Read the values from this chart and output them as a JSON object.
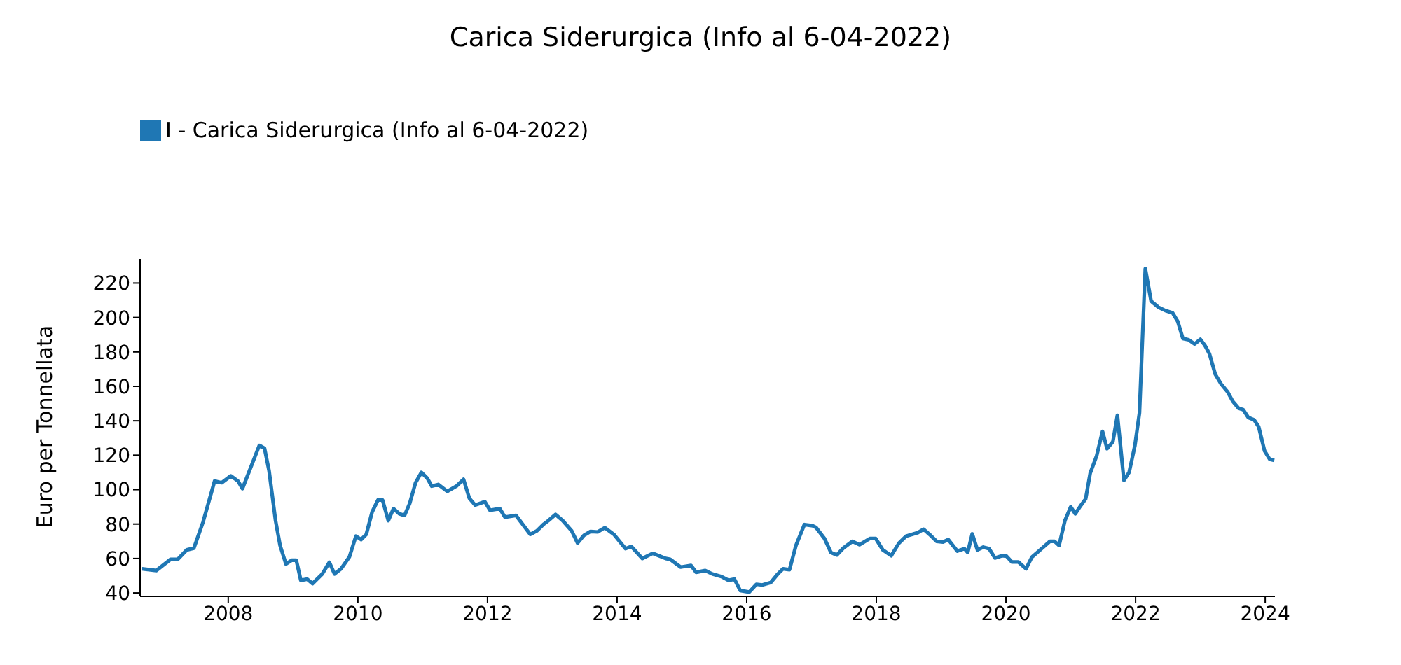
{
  "chart_data": {
    "type": "line",
    "title": "Carica Siderurgica (Info al 6-04-2022)",
    "ylabel": "Euro per Tonnellata",
    "x": [
      2006.67,
      2006.89,
      2007.11,
      2007.22,
      2007.36,
      2007.47,
      2007.61,
      2007.79,
      2007.9,
      2008.04,
      2008.15,
      2008.22,
      2008.48,
      2008.56,
      2008.63,
      2008.73,
      2008.8,
      2008.89,
      2008.98,
      2009.05,
      2009.12,
      2009.22,
      2009.3,
      2009.45,
      2009.56,
      2009.64,
      2009.74,
      2009.87,
      2009.97,
      2010.05,
      2010.13,
      2010.22,
      2010.31,
      2010.38,
      2010.47,
      2010.55,
      2010.64,
      2010.72,
      2010.8,
      2010.89,
      2010.98,
      2011.07,
      2011.14,
      2011.24,
      2011.38,
      2011.52,
      2011.63,
      2011.72,
      2011.81,
      2011.96,
      2012.04,
      2012.19,
      2012.27,
      2012.44,
      2012.66,
      2012.76,
      2012.87,
      2012.94,
      2013.05,
      2013.16,
      2013.3,
      2013.39,
      2013.49,
      2013.59,
      2013.7,
      2013.81,
      2013.95,
      2014.13,
      2014.22,
      2014.39,
      2014.55,
      2014.75,
      2014.82,
      2014.98,
      2015.14,
      2015.22,
      2015.36,
      2015.47,
      2015.61,
      2015.72,
      2015.81,
      2015.9,
      2016.04,
      2016.15,
      2016.24,
      2016.37,
      2016.48,
      2016.56,
      2016.66,
      2016.76,
      2016.89,
      2017.02,
      2017.07,
      2017.2,
      2017.3,
      2017.39,
      2017.49,
      2017.63,
      2017.74,
      2017.9,
      2017.99,
      2018.1,
      2018.23,
      2018.35,
      2018.46,
      2018.64,
      2018.73,
      2018.82,
      2018.93,
      2019.03,
      2019.11,
      2019.25,
      2019.36,
      2019.41,
      2019.48,
      2019.56,
      2019.65,
      2019.74,
      2019.83,
      2019.94,
      2020.01,
      2020.09,
      2020.19,
      2020.31,
      2020.4,
      2020.55,
      2020.68,
      2020.75,
      2020.82,
      2020.91,
      2021.0,
      2021.07,
      2021.15,
      2021.23,
      2021.3,
      2021.4,
      2021.49,
      2021.56,
      2021.65,
      2021.72,
      2021.82,
      2021.9,
      2021.99,
      2022.06,
      2022.15,
      2022.24,
      2022.35,
      2022.46,
      2022.57,
      2022.65,
      2022.73,
      2022.82,
      2022.91,
      2023.0,
      2023.07,
      2023.14,
      2023.23,
      2023.32,
      2023.42,
      2023.5,
      2023.59,
      2023.66,
      2023.74,
      2023.83,
      2023.9,
      2023.99,
      2024.07,
      2024.14
    ],
    "series": [
      {
        "name": "I - Carica Siderurgica (Info al 6-04-2022)",
        "color": "#1f77b4",
        "values": [
          54,
          53,
          59.5,
          59.5,
          65,
          66,
          81,
          105,
          104,
          108,
          105,
          100.6,
          125.7,
          124,
          111,
          82,
          67.6,
          56.8,
          59,
          59,
          47.3,
          48,
          45.4,
          51,
          57.8,
          51,
          54,
          61,
          73,
          71,
          74,
          87,
          94,
          94,
          82,
          89,
          86,
          85,
          92,
          104,
          110,
          106.7,
          102,
          103,
          99,
          102,
          106,
          95,
          91,
          93,
          88,
          89,
          84,
          85,
          74,
          76,
          80,
          82,
          85.6,
          82,
          76,
          69,
          73.5,
          75.7,
          75.4,
          77.9,
          74,
          65.7,
          67,
          60,
          63,
          60,
          59.5,
          55,
          56,
          52,
          53,
          51,
          49.5,
          47.3,
          48,
          41.4,
          40.5,
          45,
          44.6,
          46,
          51,
          54,
          53.5,
          67.6,
          79.7,
          79,
          78,
          71.6,
          63.5,
          62,
          66,
          70,
          68,
          71.6,
          71.6,
          65,
          61.6,
          69,
          73,
          75,
          77,
          74,
          70,
          69.6,
          71,
          64.3,
          65.7,
          63.5,
          74.3,
          65,
          66.6,
          65.7,
          60.3,
          61.6,
          61.3,
          58,
          58,
          54,
          60.8,
          65.7,
          70,
          70,
          67.6,
          82,
          90,
          86,
          90.5,
          94.6,
          109.5,
          119.7,
          133.8,
          123.8,
          127.8,
          143.2,
          105.4,
          110,
          125.7,
          144.6,
          228.4,
          209.5,
          206,
          204,
          202.7,
          197.8,
          187.8,
          187,
          184.6,
          187.3,
          183.8,
          178.9,
          167,
          161.4,
          156.8,
          151.3,
          147.3,
          146.5,
          141.9,
          140.5,
          136.5,
          122.5,
          117.6,
          117
        ]
      }
    ],
    "xlim": [
      2006.64,
      2024.15
    ],
    "xticks": [
      2008,
      2010,
      2012,
      2014,
      2016,
      2018,
      2020,
      2022,
      2024
    ],
    "ylim": [
      38,
      234
    ],
    "yticks": [
      40,
      60,
      80,
      100,
      120,
      140,
      160,
      180,
      200,
      220
    ],
    "grid": false,
    "legend": "top left",
    "marker": "none",
    "line_style": "solid"
  }
}
